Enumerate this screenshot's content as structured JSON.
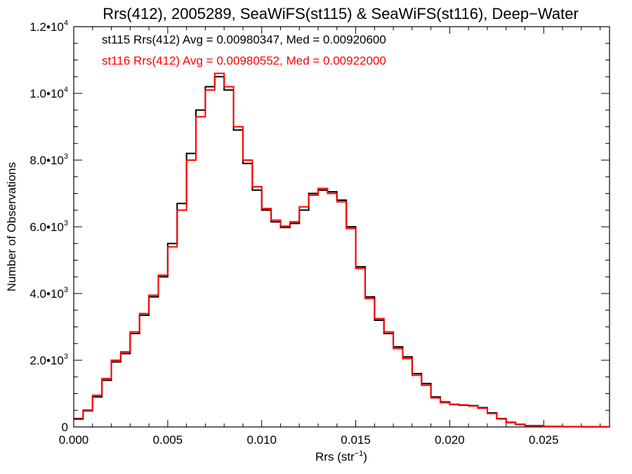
{
  "chart_data": {
    "type": "line",
    "title": "Rrs(412), 2005289, SeaWiFS(st115) & SeaWiFS(st116), Deep−Water",
    "xlabel": "Rrs (str",
    "xlabel_sup": "−1",
    "xlabel_tail": ")",
    "ylabel": "Number of Observations",
    "xlim": [
      0.0,
      0.0285
    ],
    "ylim": [
      0,
      12000
    ],
    "x_ticks": [
      {
        "value": 0.0,
        "label": "0.000"
      },
      {
        "value": 0.005,
        "label": "0.005"
      },
      {
        "value": 0.01,
        "label": "0.010"
      },
      {
        "value": 0.015,
        "label": "0.015"
      },
      {
        "value": 0.02,
        "label": "0.020"
      },
      {
        "value": 0.025,
        "label": "0.025"
      }
    ],
    "y_ticks": [
      {
        "value": 0,
        "label": "0",
        "exp": ""
      },
      {
        "value": 2000,
        "label": "2.0•10",
        "exp": "3"
      },
      {
        "value": 4000,
        "label": "4.0•10",
        "exp": "3"
      },
      {
        "value": 6000,
        "label": "6.0•10",
        "exp": "3"
      },
      {
        "value": 8000,
        "label": "8.0•10",
        "exp": "3"
      },
      {
        "value": 10000,
        "label": "1.0•10",
        "exp": "4"
      },
      {
        "value": 12000,
        "label": "1.2•10",
        "exp": "4"
      }
    ],
    "annotations": [
      {
        "text": "st115 Rrs(412) Avg = 0.00980347, Med = 0.00920600",
        "color": "#000000"
      },
      {
        "text": "st116 Rrs(412) Avg = 0.00980552, Med = 0.00922000",
        "color": "#ff0000"
      }
    ],
    "grid": false,
    "step": true,
    "series": [
      {
        "name": "st115",
        "color": "#000000",
        "x": [
          0.0,
          0.0005,
          0.001,
          0.0015,
          0.002,
          0.0025,
          0.003,
          0.0035,
          0.004,
          0.0045,
          0.005,
          0.0055,
          0.006,
          0.0065,
          0.007,
          0.0075,
          0.008,
          0.0085,
          0.009,
          0.0095,
          0.01,
          0.0105,
          0.011,
          0.0115,
          0.012,
          0.0125,
          0.013,
          0.0135,
          0.014,
          0.0145,
          0.015,
          0.0155,
          0.016,
          0.0165,
          0.017,
          0.0175,
          0.018,
          0.0185,
          0.019,
          0.0195,
          0.02,
          0.0205,
          0.021,
          0.0215,
          0.022,
          0.0225,
          0.023,
          0.0235,
          0.024,
          0.025,
          0.026,
          0.027,
          0.0285
        ],
        "values": [
          250,
          500,
          900,
          1400,
          1950,
          2200,
          2800,
          3350,
          3900,
          4500,
          5500,
          6700,
          8200,
          9500,
          10200,
          10500,
          10100,
          8900,
          7900,
          7100,
          6500,
          6150,
          5980,
          6100,
          6500,
          7000,
          7100,
          7050,
          6800,
          6000,
          4800,
          3900,
          3200,
          2800,
          2400,
          2100,
          1600,
          1300,
          900,
          750,
          680,
          650,
          640,
          580,
          420,
          250,
          140,
          80,
          40,
          15,
          8,
          4,
          0
        ]
      },
      {
        "name": "st116",
        "color": "#ff0000",
        "x": [
          0.0,
          0.0005,
          0.001,
          0.0015,
          0.002,
          0.0025,
          0.003,
          0.0035,
          0.004,
          0.0045,
          0.005,
          0.0055,
          0.006,
          0.0065,
          0.007,
          0.0075,
          0.008,
          0.0085,
          0.009,
          0.0095,
          0.01,
          0.0105,
          0.011,
          0.0115,
          0.012,
          0.0125,
          0.013,
          0.0135,
          0.014,
          0.0145,
          0.015,
          0.0155,
          0.016,
          0.0165,
          0.017,
          0.0175,
          0.018,
          0.0185,
          0.019,
          0.0195,
          0.02,
          0.0205,
          0.021,
          0.0215,
          0.022,
          0.0225,
          0.023,
          0.0235,
          0.024,
          0.025,
          0.026,
          0.027,
          0.0285
        ],
        "values": [
          230,
          480,
          950,
          1450,
          2000,
          2250,
          2850,
          3400,
          3950,
          4550,
          5400,
          6500,
          8000,
          9300,
          10100,
          10600,
          10200,
          9000,
          8000,
          7200,
          6550,
          6200,
          6020,
          6150,
          6600,
          6950,
          7150,
          7000,
          6750,
          5950,
          4750,
          3850,
          3250,
          2850,
          2350,
          2050,
          1550,
          1250,
          870,
          730,
          670,
          660,
          630,
          560,
          400,
          240,
          130,
          75,
          35,
          14,
          7,
          3,
          0
        ]
      }
    ]
  }
}
